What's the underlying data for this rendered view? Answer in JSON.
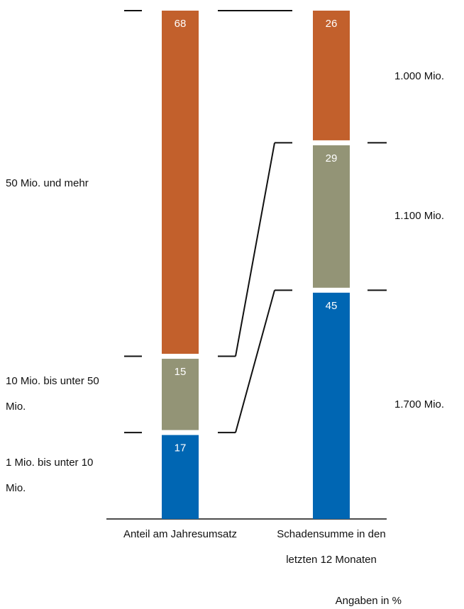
{
  "chart_data": {
    "type": "stacked_bar",
    "categories": [
      "Anteil am Jahresumsatz",
      "Schadensumme in den letzten 12 Monaten"
    ],
    "series": [
      {
        "name": "1 Mio. bis unter 10 Mio.",
        "color": "#0066b3",
        "values": [
          17,
          45
        ],
        "right_label": "1.700 Mio."
      },
      {
        "name": "10 Mio. bis unter 50 Mio.",
        "color": "#939476",
        "values": [
          15,
          29
        ],
        "right_label": "1.100 Mio."
      },
      {
        "name": "50 Mio. und mehr",
        "color": "#c2602c",
        "values": [
          68,
          26
        ],
        "right_label": "1.000 Mio."
      }
    ],
    "ylim": [
      0,
      100
    ],
    "note": "Angaben in %"
  }
}
